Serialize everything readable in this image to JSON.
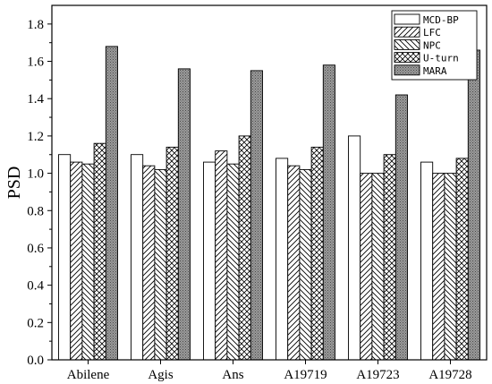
{
  "chart_data": {
    "type": "bar",
    "title": "",
    "xlabel": "",
    "ylabel": "PSD",
    "ylim": [
      0.0,
      1.9
    ],
    "yticks": [
      0.0,
      0.2,
      0.4,
      0.6,
      0.8,
      1.0,
      1.2,
      1.4,
      1.6,
      1.8
    ],
    "ytick_labels": [
      "0.0",
      "0.2",
      "0.4",
      "0.6",
      "0.8",
      "1.0",
      "1.2",
      "1.4",
      "1.6",
      "1.8"
    ],
    "grid": false,
    "legend_position": "top-right",
    "categories": [
      "Abilene",
      "Agis",
      "Ans",
      "A19719",
      "A19723",
      "A19728"
    ],
    "series": [
      {
        "name": "MCD-BP",
        "pattern": "white",
        "values": [
          1.1,
          1.1,
          1.06,
          1.08,
          1.2,
          1.06
        ]
      },
      {
        "name": "LFC",
        "pattern": "hatch-forward",
        "values": [
          1.06,
          1.04,
          1.12,
          1.04,
          1.0,
          1.0
        ]
      },
      {
        "name": "NPC",
        "pattern": "hatch-back",
        "values": [
          1.05,
          1.02,
          1.05,
          1.02,
          1.0,
          1.0
        ]
      },
      {
        "name": "U-turn",
        "pattern": "crosshatch",
        "values": [
          1.16,
          1.14,
          1.2,
          1.14,
          1.1,
          1.08
        ]
      },
      {
        "name": "MARA",
        "pattern": "dense-gray",
        "values": [
          1.68,
          1.56,
          1.55,
          1.58,
          1.42,
          1.66
        ]
      }
    ]
  }
}
